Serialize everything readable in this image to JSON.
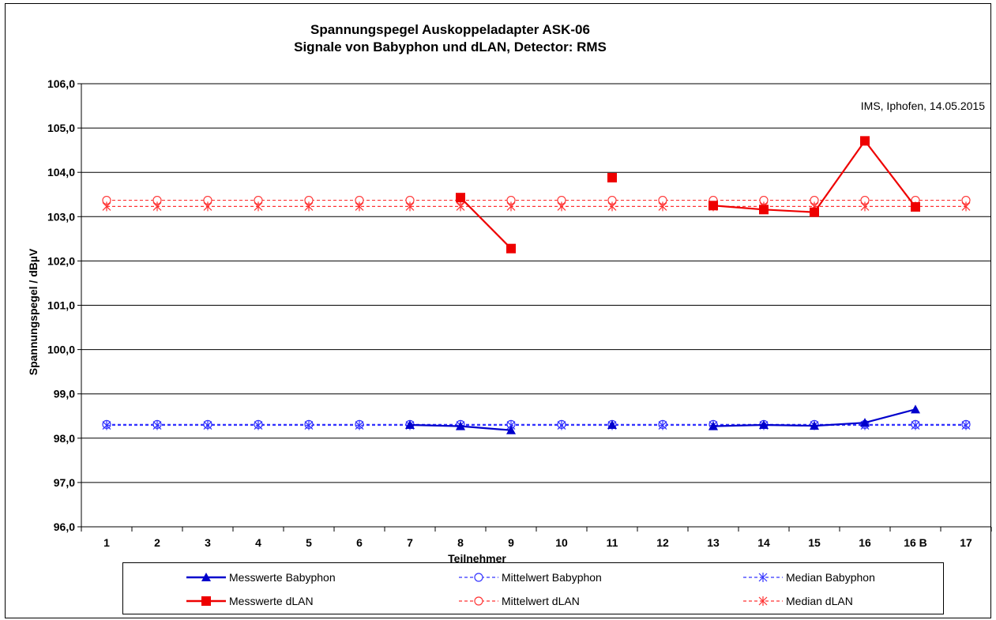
{
  "chart_data": {
    "type": "line",
    "title_line1": "Spannungspegel Auskoppeladapter ASK-06",
    "title_line2": "Signale von Babyphon und dLAN, Detector: RMS",
    "annotation": "IMS, Iphofen, 14.05.2015",
    "xlabel": "Teilnehmer",
    "ylabel": "Spannungspegel / dBµV",
    "categories": [
      "1",
      "2",
      "3",
      "4",
      "5",
      "6",
      "7",
      "8",
      "9",
      "10",
      "11",
      "12",
      "13",
      "14",
      "15",
      "16",
      "16 B",
      "17"
    ],
    "ylim": [
      96,
      106
    ],
    "yticks": [
      96,
      97,
      98,
      99,
      100,
      101,
      102,
      103,
      104,
      105,
      106
    ],
    "ytick_labels": [
      "96,0",
      "97,0",
      "98,0",
      "99,0",
      "100,0",
      "101,0",
      "102,0",
      "103,0",
      "104,0",
      "105,0",
      "106,0"
    ],
    "grid": "horizontal",
    "legend_position": "bottom",
    "series": [
      {
        "name": "Messwerte Babyphon",
        "color": "#0000cc",
        "style": "solid",
        "marker": "triangle",
        "values": [
          null,
          null,
          null,
          null,
          null,
          null,
          98.3,
          98.27,
          98.18,
          null,
          98.3,
          null,
          98.27,
          98.3,
          98.28,
          98.35,
          98.65,
          null
        ]
      },
      {
        "name": "Mittelwert Babyphon",
        "color": "#3333ff",
        "style": "dashed",
        "marker": "circle",
        "values": [
          98.31,
          98.31,
          98.31,
          98.31,
          98.31,
          98.31,
          98.31,
          98.31,
          98.31,
          98.31,
          98.31,
          98.31,
          98.31,
          98.31,
          98.31,
          98.31,
          98.31,
          98.31
        ]
      },
      {
        "name": "Median Babyphon",
        "color": "#3333ff",
        "style": "dashed",
        "marker": "asterisk",
        "values": [
          98.29,
          98.29,
          98.29,
          98.29,
          98.29,
          98.29,
          98.29,
          98.29,
          98.29,
          98.29,
          98.29,
          98.29,
          98.29,
          98.29,
          98.29,
          98.29,
          98.29,
          98.29
        ]
      },
      {
        "name": "Messwerte dLAN",
        "color": "#ee0000",
        "style": "solid",
        "marker": "square",
        "values": [
          null,
          null,
          null,
          null,
          null,
          null,
          null,
          103.43,
          102.28,
          null,
          103.88,
          null,
          103.25,
          103.16,
          103.1,
          104.71,
          103.22,
          null
        ]
      },
      {
        "name": "Mittelwert dLAN",
        "color": "#ff3333",
        "style": "dashed",
        "marker": "circle",
        "values": [
          103.37,
          103.37,
          103.37,
          103.37,
          103.37,
          103.37,
          103.37,
          103.37,
          103.37,
          103.37,
          103.37,
          103.37,
          103.37,
          103.37,
          103.37,
          103.37,
          103.37,
          103.37
        ]
      },
      {
        "name": "Median dLAN",
        "color": "#ff3333",
        "style": "dashed",
        "marker": "asterisk",
        "values": [
          103.23,
          103.23,
          103.23,
          103.23,
          103.23,
          103.23,
          103.23,
          103.23,
          103.23,
          103.23,
          103.23,
          103.23,
          103.23,
          103.23,
          103.23,
          103.23,
          103.23,
          103.23
        ]
      }
    ]
  }
}
